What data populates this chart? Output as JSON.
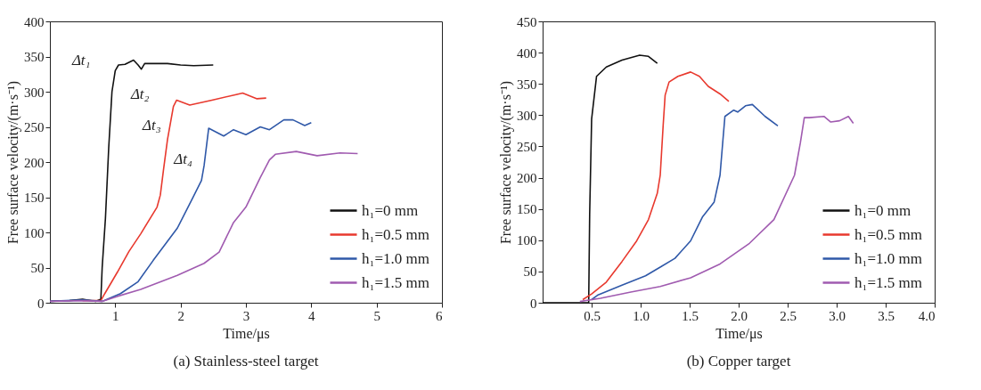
{
  "chart_data": [
    {
      "type": "line",
      "title": "(a) Stainless-steel target",
      "xlabel": "Time/μs",
      "ylabel": "Free surface velocity/(m·s⁻¹)",
      "xlim": [
        0,
        6
      ],
      "xticks": [
        1,
        2,
        3,
        4,
        5,
        6
      ],
      "ylim": [
        0,
        400
      ],
      "yticks": [
        0,
        50,
        100,
        150,
        200,
        250,
        300,
        350,
        400
      ],
      "grid": false,
      "legend": "bottom right",
      "marker": "none",
      "line_style": "solid",
      "annotations": [
        "Δt₁",
        "Δt₂",
        "Δt₃",
        "Δt₄"
      ],
      "series": [
        {
          "name": "h₁=0 mm",
          "color": "#111111",
          "x": [
            0,
            0.3,
            0.5,
            0.7,
            0.78,
            0.8,
            0.85,
            0.9,
            0.95,
            1.0,
            1.05,
            1.15,
            1.28,
            1.35,
            1.4,
            1.45,
            1.6,
            1.8,
            2.0,
            2.2,
            2.5
          ],
          "values": [
            2,
            3,
            5,
            2,
            5,
            50,
            120,
            220,
            300,
            330,
            338,
            339,
            345,
            338,
            332,
            340,
            340,
            340,
            338,
            337,
            338
          ]
        },
        {
          "name": "h₁=0.5 mm",
          "color": "#e8392e",
          "x": [
            0.5,
            0.78,
            0.84,
            1.03,
            1.21,
            1.39,
            1.64,
            1.69,
            1.74,
            1.8,
            1.89,
            1.94,
            2.14,
            2.48,
            2.85,
            2.95,
            3.17,
            3.31
          ],
          "values": [
            3,
            3,
            13,
            43,
            73,
            98,
            136,
            153,
            190,
            232,
            279,
            288,
            281,
            288,
            296,
            298,
            290,
            291
          ]
        },
        {
          "name": "h₁=1.0 mm",
          "color": "#2f58a8",
          "x": [
            0,
            0.5,
            0.8,
            1.08,
            1.35,
            1.58,
            1.95,
            2.18,
            2.32,
            2.36,
            2.43,
            2.66,
            2.81,
            3.0,
            3.22,
            3.36,
            3.58,
            3.72,
            3.9,
            4.0
          ],
          "values": [
            2,
            4,
            2,
            13,
            30,
            60,
            106,
            148,
            174,
            195,
            248,
            237,
            246,
            239,
            250,
            246,
            260,
            260,
            252,
            256
          ]
        },
        {
          "name": "h₁=1.5 mm",
          "color": "#a05bb0",
          "x": [
            0,
            0.5,
            0.8,
            1.03,
            1.39,
            1.95,
            2.36,
            2.59,
            2.81,
            3.0,
            3.22,
            3.36,
            3.45,
            3.77,
            4.09,
            4.44,
            4.71
          ],
          "values": [
            2,
            3,
            2,
            9,
            19,
            39,
            56,
            72,
            114,
            136,
            178,
            203,
            211,
            215,
            209,
            213,
            212
          ]
        }
      ]
    },
    {
      "type": "line",
      "title": "(b) Copper target",
      "xlabel": "Time/μs",
      "ylabel": "Free surface velocity/(m·s⁻¹)",
      "xlim": [
        0,
        4
      ],
      "xticks": [
        {
          "value": 0.5,
          "label": "0.5"
        },
        {
          "value": 1,
          "label": "1.0"
        },
        {
          "value": 1.5,
          "label": "1.5"
        },
        {
          "value": 2,
          "label": "2.0"
        },
        {
          "value": 2.5,
          "label": "2.5"
        },
        {
          "value": 3,
          "label": "3.0"
        },
        {
          "value": 3.5,
          "label": "3.5"
        },
        {
          "value": 4,
          "label": "4.0"
        }
      ],
      "ylim": [
        0,
        450
      ],
      "yticks": [
        0,
        50,
        100,
        150,
        200,
        250,
        300,
        350,
        400,
        450
      ],
      "grid": false,
      "legend": "bottom right",
      "marker": "none",
      "line_style": "solid",
      "series": [
        {
          "name": "h₁=0 mm",
          "color": "#111111",
          "x": [
            0,
            0.43,
            0.47,
            0.48,
            0.5,
            0.55,
            0.65,
            0.81,
            0.99,
            1.08,
            1.17
          ],
          "values": [
            0,
            0,
            0,
            142,
            294,
            362,
            377,
            388,
            396,
            394,
            383
          ]
        },
        {
          "name": "h₁=0.5 mm",
          "color": "#e8392e",
          "x": [
            0.41,
            0.5,
            0.65,
            0.81,
            0.96,
            1.08,
            1.17,
            1.2,
            1.23,
            1.25,
            1.29,
            1.38,
            1.51,
            1.6,
            1.69,
            1.81,
            1.9
          ],
          "values": [
            5,
            14,
            33,
            66,
            99,
            133,
            175,
            204,
            284,
            332,
            353,
            362,
            369,
            362,
            346,
            334,
            322
          ]
        },
        {
          "name": "h₁=1.0 mm",
          "color": "#2f58a8",
          "x": [
            0.5,
            0.56,
            0.81,
            1.05,
            1.2,
            1.35,
            1.51,
            1.63,
            1.75,
            1.81,
            1.84,
            1.86,
            1.95,
            1.99,
            2.07,
            2.14,
            2.27,
            2.4
          ],
          "values": [
            5,
            12,
            28,
            43,
            57,
            71,
            99,
            137,
            161,
            204,
            261,
            298,
            308,
            305,
            315,
            317,
            298,
            283
          ]
        },
        {
          "name": "h₁=1.5 mm",
          "color": "#a05bb0",
          "x": [
            0.38,
            0.59,
            0.9,
            1.2,
            1.51,
            1.81,
            2.11,
            2.36,
            2.57,
            2.63,
            2.67,
            2.72,
            2.87,
            2.94,
            3.03,
            3.12,
            3.17
          ],
          "values": [
            2,
            7,
            17,
            26,
            40,
            62,
            95,
            133,
            204,
            256,
            296,
            296,
            298,
            289,
            291,
            298,
            287
          ]
        }
      ]
    }
  ]
}
